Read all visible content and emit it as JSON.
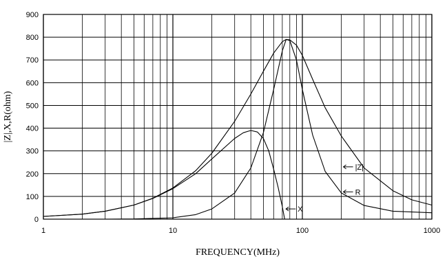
{
  "chart_data": {
    "type": "line",
    "xlabel": "FREQUENCY(MHz)",
    "ylabel": "|Z|,X,R(ohm)",
    "x_scale": "log",
    "xlim": [
      1,
      1000
    ],
    "ylim": [
      0,
      900
    ],
    "grid": true,
    "x_ticks": [
      "1",
      "10",
      "100",
      "1000"
    ],
    "y_ticks": [
      "0",
      "100",
      "200",
      "300",
      "400",
      "500",
      "600",
      "700",
      "800",
      "900"
    ],
    "series": [
      {
        "name": "|Z|",
        "x": [
          1,
          2,
          3,
          5,
          7,
          10,
          15,
          20,
          30,
          40,
          50,
          60,
          70,
          75,
          80,
          90,
          100,
          120,
          150,
          200,
          300,
          500,
          700,
          1000
        ],
        "values": [
          12,
          22,
          35,
          62,
          92,
          137,
          213,
          290,
          430,
          550,
          650,
          730,
          780,
          790,
          788,
          765,
          720,
          615,
          490,
          365,
          225,
          125,
          85,
          62
        ]
      },
      {
        "name": "R",
        "x": [
          1,
          3,
          5,
          10,
          15,
          20,
          30,
          40,
          50,
          60,
          70,
          75,
          80,
          90,
          100,
          120,
          150,
          200,
          300,
          500,
          1000
        ],
        "values": [
          0,
          0,
          1,
          6,
          20,
          45,
          115,
          225,
          380,
          570,
          740,
          790,
          785,
          700,
          570,
          370,
          210,
          115,
          60,
          35,
          28
        ]
      },
      {
        "name": "X",
        "x": [
          1,
          2,
          3,
          5,
          7,
          10,
          15,
          20,
          30,
          35,
          40,
          45,
          50,
          55,
          60,
          65,
          70,
          73
        ],
        "values": [
          12,
          22,
          35,
          62,
          91,
          134,
          200,
          265,
          355,
          380,
          390,
          383,
          355,
          300,
          220,
          140,
          55,
          0
        ]
      }
    ],
    "annotations": [
      "|Z|",
      "R",
      "X"
    ]
  }
}
